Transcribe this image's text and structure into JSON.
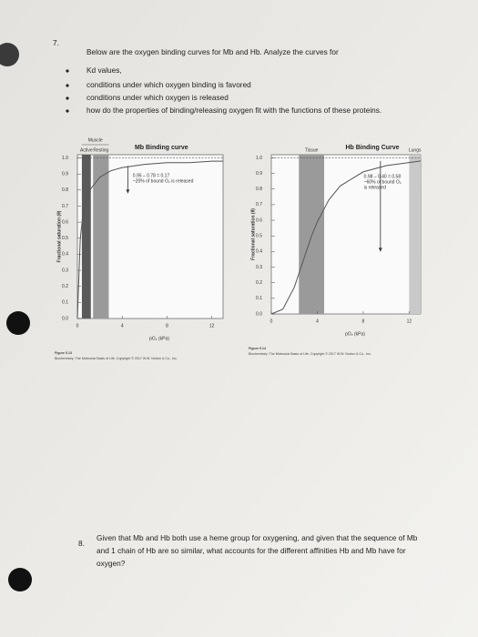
{
  "question7": {
    "number": "7.",
    "intro": "Below are the oxygen binding curves for Mb and Hb. Analyze the curves for",
    "bullets": [
      "Kd values,",
      "conditions under which oxygen binding is favored",
      "conditions under which oxygen is released",
      "how do the properties of binding/releasing oxygen fit with the functions of these proteins."
    ]
  },
  "chart_data": [
    {
      "type": "line",
      "title": "Mb Binding curve",
      "x_label": "pO₂ (kPa)",
      "y_label": "Fractional saturation (θ)",
      "group_label": "Muscle",
      "regions": [
        {
          "label": "Active",
          "x": [
            0.4,
            1.2
          ],
          "color": "#5a5a5a"
        },
        {
          "label": "Resting",
          "x": [
            1.4,
            2.8
          ],
          "color": "#9a9a9a"
        }
      ],
      "x": [
        0,
        0.25,
        0.5,
        1,
        2,
        3,
        4,
        6,
        8,
        10,
        12,
        13
      ],
      "values": [
        0,
        0.49,
        0.66,
        0.79,
        0.88,
        0.92,
        0.94,
        0.96,
        0.97,
        0.97,
        0.98,
        0.98
      ],
      "color": "#555555",
      "reference_line": 1,
      "arrow": {
        "x": 4.5,
        "from": 0.95,
        "to": 0.78
      },
      "annotation": [
        "0.95 – 0.78 = 0.17",
        "~20% of bound O₂ is released"
      ],
      "xlim": [
        0,
        13
      ],
      "ylim": [
        0,
        1.02
      ],
      "xticks": [
        0,
        4,
        8,
        12
      ],
      "yticks": [
        {
          "value": 0,
          "label": "0.0"
        },
        0.1,
        0.2,
        0.3,
        0.4,
        0.5,
        0.6,
        0.7,
        0.8,
        0.9,
        {
          "value": 1,
          "label": "1.0"
        }
      ],
      "caption": [
        "Figure 5.13",
        "Biochemistry: The Molecular Basis of Life, Copyright © 2017 W.W. Norton & Co., Inc."
      ]
    },
    {
      "type": "line",
      "title": "Hb Binding Curve",
      "x_label": "pO₂ (kPa)",
      "y_label": "Fractional saturation (θ)",
      "regions": [
        {
          "label": "Tissue",
          "x": [
            2.4,
            4.6
          ],
          "color": "#9a9a9a"
        },
        {
          "label": "Lungs",
          "x": [
            12,
            13
          ],
          "color": "#c9c9c9"
        }
      ],
      "x": [
        0,
        1,
        2,
        3,
        3.5,
        4,
        5,
        6,
        8,
        10,
        12,
        13
      ],
      "values": [
        0,
        0.03,
        0.17,
        0.39,
        0.5,
        0.59,
        0.73,
        0.82,
        0.91,
        0.95,
        0.97,
        0.98
      ],
      "color": "#555555",
      "reference_line": 1,
      "arrow": {
        "x": 9.5,
        "from": 0.98,
        "to": 0.4
      },
      "annotation": [
        "0.98 – 0.40 = 0.58",
        "~60% of bound O₂",
        "is released"
      ],
      "xlim": [
        0,
        13
      ],
      "ylim": [
        0,
        1.02
      ],
      "xticks": [
        0,
        4,
        8,
        12
      ],
      "yticks": [
        {
          "value": 0,
          "label": "0.0"
        },
        0.1,
        0.2,
        0.3,
        0.4,
        0.5,
        0.6,
        0.7,
        0.8,
        0.9,
        {
          "value": 1,
          "label": "1.0"
        }
      ],
      "caption": [
        "Figure 5.14",
        "Biochemistry: The Molecular Basis of Life, Copyright © 2017 W.W. Norton & Co., Inc."
      ]
    }
  ],
  "question8": {
    "number": "8.",
    "lines": [
      "Given that Mb and Hb both use a heme group for oxygening, and given that the sequence of Mb",
      "and 1 chain of Hb are so similar, what accounts for the different affinities Hb and Mb have for",
      "oxygen?"
    ]
  }
}
